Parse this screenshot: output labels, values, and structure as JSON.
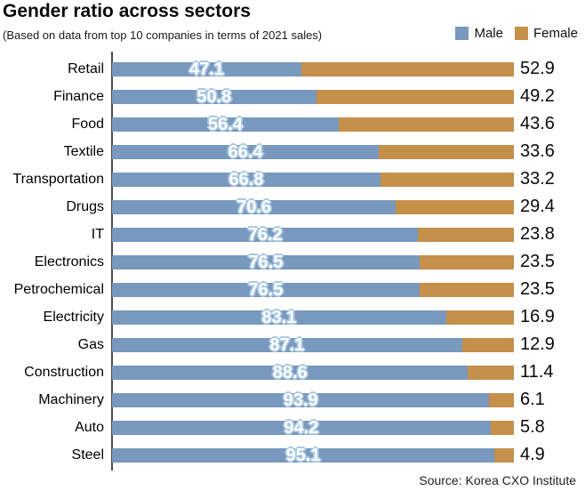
{
  "header": {
    "title": "Gender ratio across sectors",
    "subtitle": "(Based on data from top 10 companies in terms of 2021 sales)"
  },
  "legend": [
    {
      "label": "Male",
      "color": "#7898bd"
    },
    {
      "label": "Female",
      "color": "#c4904a"
    }
  ],
  "colors": {
    "male_bar": "#7898bd",
    "female_bar": "#c4904a",
    "male_label_text": "#ffffff",
    "male_label_outline": "#aac8e2",
    "axis_line": "#4d4d4d"
  },
  "source": "Source: Korea CXO Institute",
  "chart_data": {
    "type": "bar",
    "orientation": "horizontal",
    "stacked": true,
    "title": "Gender ratio across sectors",
    "subtitle": "(Based on data from top 10 companies in terms of 2021 sales)",
    "categories": [
      "Retail",
      "Finance",
      "Food",
      "Textile",
      "Transportation",
      "Drugs",
      "IT",
      "Electronics",
      "Petrochemical",
      "Electricity",
      "Gas",
      "Construction",
      "Machinery",
      "Auto",
      "Steel"
    ],
    "series": [
      {
        "name": "Male",
        "color": "#7898bd",
        "values": [
          47.1,
          50.8,
          56.4,
          66.4,
          66.8,
          70.6,
          76.2,
          76.5,
          76.5,
          83.1,
          87.1,
          88.6,
          93.9,
          94.2,
          95.1
        ]
      },
      {
        "name": "Female",
        "color": "#c4904a",
        "values": [
          52.9,
          49.2,
          43.6,
          33.6,
          33.2,
          29.4,
          23.8,
          23.5,
          23.5,
          16.9,
          12.9,
          11.4,
          6.1,
          5.8,
          4.9
        ]
      }
    ],
    "xlim": [
      0,
      100
    ],
    "grid": false,
    "legend_position": "top-right",
    "value_labels": {
      "male": "inside-center, white bold with light-blue outline",
      "female": "outside-right, black"
    },
    "source": "Source: Korea CXO Institute"
  }
}
